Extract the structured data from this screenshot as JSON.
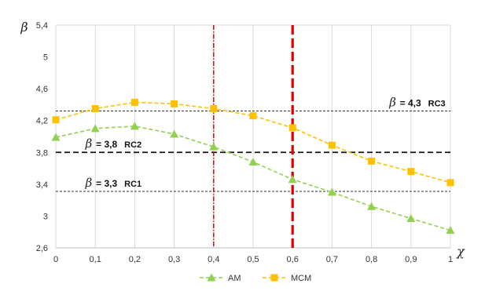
{
  "chart_data": {
    "type": "line",
    "xlabel": "χ",
    "ylabel": "β",
    "x": [
      0,
      0.1,
      0.2,
      0.3,
      0.4,
      0.5,
      0.6,
      0.7,
      0.8,
      0.9,
      1
    ],
    "x_tick_labels": [
      "0",
      "0,1",
      "0,2",
      "0,3",
      "0,4",
      "0,5",
      "0,6",
      "0,7",
      "0,8",
      "0,9",
      "1"
    ],
    "ylim": [
      2.6,
      5.4
    ],
    "y_ticks": [
      2.6,
      3,
      3.4,
      3.8,
      4.2,
      4.6,
      5,
      5.4
    ],
    "y_tick_labels": [
      "2,6",
      "3",
      "3,4",
      "3,8",
      "4,2",
      "4,6",
      "5",
      "5,4"
    ],
    "grid": "vertical",
    "legend_position": "bottom",
    "series": [
      {
        "name": "AM",
        "color": "#92D050",
        "marker": "triangle",
        "line_style": "dashed",
        "values": [
          3.99,
          4.1,
          4.13,
          4.03,
          3.87,
          3.68,
          3.46,
          3.3,
          3.12,
          2.97,
          2.82
        ]
      },
      {
        "name": "MCM",
        "color": "#FFC000",
        "marker": "square",
        "line_style": "dashed",
        "values": [
          4.21,
          4.35,
          4.43,
          4.41,
          4.35,
          4.26,
          4.11,
          3.89,
          3.69,
          3.56,
          3.42
        ]
      }
    ],
    "reference_lines": [
      {
        "axis": "y",
        "value": 4.32,
        "color": "#333333",
        "style": "dotted"
      },
      {
        "axis": "y",
        "value": 3.8,
        "color": "#111111",
        "style": "dashed"
      },
      {
        "axis": "y",
        "value": 3.31,
        "color": "#333333",
        "style": "dotted"
      },
      {
        "axis": "x",
        "value": 0.4,
        "color": "#E00000",
        "style": "dash-dot"
      },
      {
        "axis": "x",
        "value": 0.6,
        "color": "#E00000",
        "style": "dashed-bold"
      }
    ],
    "annotations": [
      {
        "symbol": "β",
        "eq": "=",
        "number": "4,3",
        "label": "RC3",
        "x": 0.845,
        "y": 4.38
      },
      {
        "symbol": "β",
        "eq": "=",
        "number": "3,8",
        "label": "RC2",
        "x": 0.075,
        "y": 3.86
      },
      {
        "symbol": "β",
        "eq": "=",
        "number": "3,3",
        "label": "RC1",
        "x": 0.075,
        "y": 3.37
      }
    ]
  }
}
